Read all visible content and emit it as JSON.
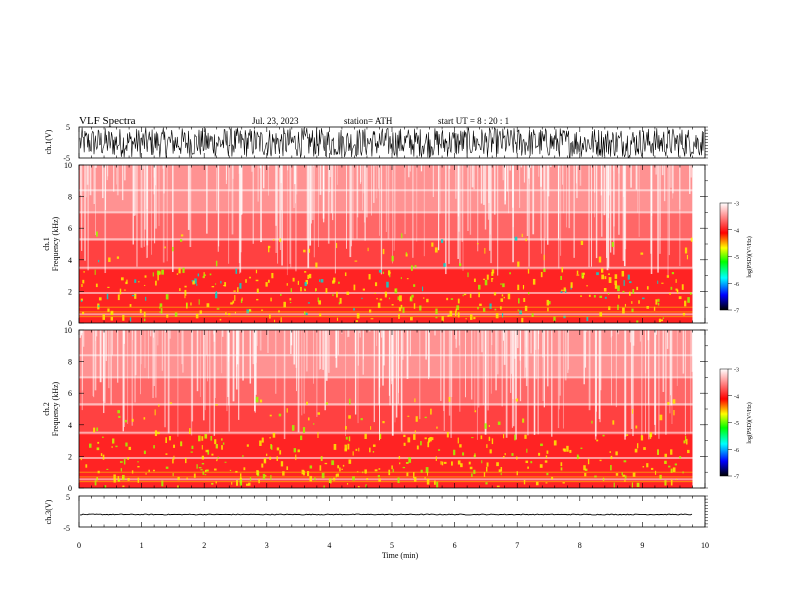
{
  "header": {
    "title": "VLF  Spectra",
    "date": "Jul.  23, 2023",
    "station": "station= ATH",
    "start": "start  UT  =   8  : 20 : 1"
  },
  "chart_data": [
    {
      "type": "line",
      "name": "ch1-waveform",
      "ylabel": "ch.1(V)",
      "ylim": [
        -5,
        5
      ],
      "ytick_labels": [
        "5",
        "-5"
      ],
      "note_amplitude": 5,
      "color": "#000000"
    },
    {
      "type": "heatmap",
      "name": "ch1-spectrogram",
      "ylabel_lines": [
        "ch.1",
        "Frequency (kHz)"
      ],
      "ylim": [
        0,
        10
      ],
      "ytick_labels": [
        "0",
        "2",
        "4",
        "6",
        "8",
        "10"
      ],
      "colorbar": {
        "label": "log(PSD)(V²/Hz)",
        "range": [
          -7,
          -3
        ],
        "tick_labels": [
          "-3",
          "-4",
          "-5",
          "-6",
          "-7"
        ]
      }
    },
    {
      "type": "heatmap",
      "name": "ch2-spectrogram",
      "ylabel_lines": [
        "ch.2",
        "Frequency (kHz)"
      ],
      "ylim": [
        0,
        10
      ],
      "ytick_labels": [
        "0",
        "2",
        "4",
        "6",
        "8",
        "10"
      ],
      "colorbar": {
        "label": "log(PSD)(V²/Hz)",
        "range": [
          -7,
          -3
        ],
        "tick_labels": [
          "-3",
          "-4",
          "-5",
          "-6",
          "-7"
        ]
      }
    },
    {
      "type": "line",
      "name": "ch3-waveform",
      "ylabel": "ch.3(V)",
      "ylim": [
        -5,
        5
      ],
      "ytick_labels": [
        "5",
        "-5"
      ],
      "level": -1,
      "color": "#000000"
    }
  ],
  "x_axis": {
    "label": "Time  (min)",
    "range": [
      0,
      10
    ],
    "data_end": 9.8,
    "tick_labels": [
      "0",
      "1",
      "2",
      "3",
      "4",
      "5",
      "6",
      "7",
      "8",
      "9",
      "10"
    ]
  },
  "colormap": [
    "#ffffff",
    "#ff0000",
    "#ffff00",
    "#00ff00",
    "#00ffff",
    "#0000ff",
    "#000000"
  ]
}
